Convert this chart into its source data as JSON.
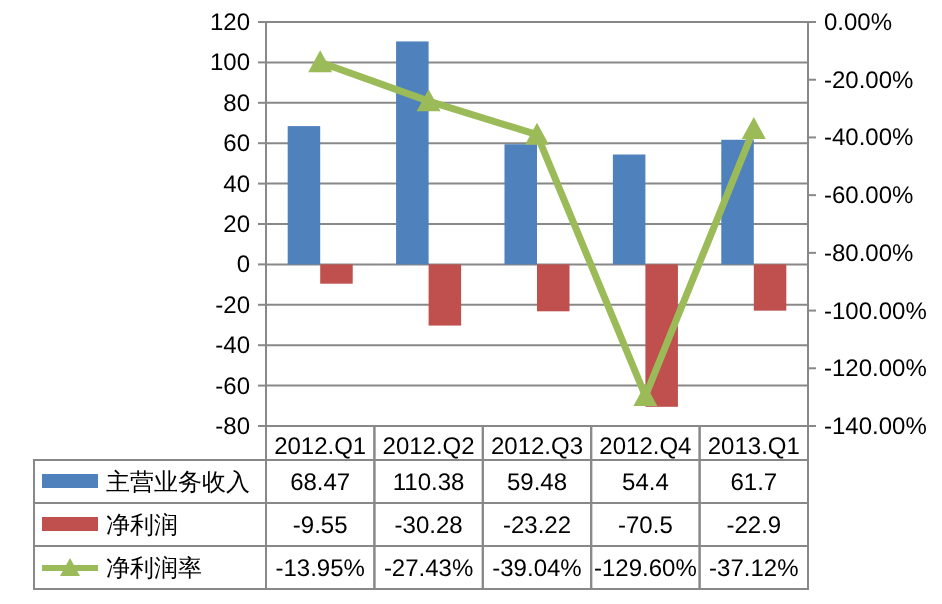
{
  "chart_data": {
    "type": "bar",
    "categories": [
      "2012.Q1",
      "2012.Q2",
      "2012.Q3",
      "2012.Q4",
      "2013.Q1"
    ],
    "series": [
      {
        "name": "主营业务收入",
        "color": "#4f81bd",
        "values": [
          68.47,
          110.38,
          59.48,
          54.4,
          61.7
        ]
      },
      {
        "name": "净利润",
        "color": "#c0504d",
        "values": [
          -9.55,
          -30.28,
          -23.22,
          -70.5,
          -22.9
        ]
      },
      {
        "name": "净利润率",
        "type": "line",
        "axis": "y2",
        "marker": "triangle",
        "color": "#9bbb59",
        "values": [
          -13.95,
          -27.43,
          -39.04,
          -129.6,
          -37.12
        ],
        "value_labels": [
          "-13.95%",
          "-27.43%",
          "-39.04%",
          "-129.60%",
          "-37.12%"
        ]
      }
    ],
    "ylim": [
      -80,
      120
    ],
    "yticks": [
      -80,
      -60,
      -40,
      -20,
      0,
      20,
      40,
      60,
      80,
      100,
      120
    ],
    "y2lim": [
      -140,
      0
    ],
    "y2ticks": [
      {
        "value": 0,
        "label": "0.00%"
      },
      {
        "value": -20,
        "label": "-20.00%"
      },
      {
        "value": -40,
        "label": "-40.00%"
      },
      {
        "value": -60,
        "label": "-60.00%"
      },
      {
        "value": -80,
        "label": "-80.00%"
      },
      {
        "value": -100,
        "label": "-100.00%"
      },
      {
        "value": -120,
        "label": "-120.00%"
      },
      {
        "value": -140,
        "label": "-140.00%"
      }
    ],
    "grid": "y",
    "data_labels": true,
    "legend": "bottom left"
  }
}
